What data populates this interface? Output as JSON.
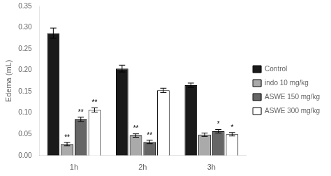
{
  "chart_data": {
    "type": "bar",
    "ylabel": "Edema (mL)",
    "categories": [
      "1h",
      "2h",
      "3h"
    ],
    "series": [
      {
        "name": "Control",
        "color": "#1a1a1a",
        "values": [
          0.287,
          0.204,
          0.165
        ],
        "errors": [
          0.012,
          0.008,
          0.005
        ],
        "annotations": [
          null,
          null,
          null
        ]
      },
      {
        "name": "indo 10 mg/kg",
        "color": "#aaaaaa",
        "values": [
          0.027,
          0.047,
          0.049
        ],
        "errors": [
          0.004,
          0.004,
          0.004
        ],
        "annotations": [
          "**",
          "**",
          null
        ]
      },
      {
        "name": "ASWE 150 mg/kg",
        "color": "#666666",
        "values": [
          0.085,
          0.032,
          0.057
        ],
        "errors": [
          0.005,
          0.004,
          0.004
        ],
        "annotations": [
          "**",
          "**",
          "*"
        ]
      },
      {
        "name": "ASWE 300 mg/kg",
        "color": "#ffffff",
        "values": [
          0.107,
          0.153,
          0.05
        ],
        "errors": [
          0.005,
          0.005,
          0.004
        ],
        "annotations": [
          "**",
          null,
          "*"
        ]
      }
    ],
    "ylim": [
      0,
      0.35
    ],
    "yticks": [
      {
        "value": 0.0,
        "label": "0.00"
      },
      0.05,
      {
        "value": 0.1,
        "label": "0.10"
      },
      0.15,
      {
        "value": 0.2,
        "label": "0.20"
      },
      0.25,
      {
        "value": 0.3,
        "label": "0.30"
      },
      0.35
    ],
    "grid": false,
    "legend": "right"
  }
}
